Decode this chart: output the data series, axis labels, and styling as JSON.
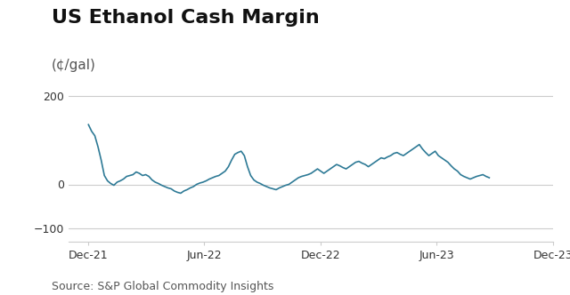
{
  "title": "US Ethanol Cash Margin",
  "subtitle": "(¢/gal)",
  "source": "Source: S&P Global Commodity Insights",
  "line_color": "#2e7a96",
  "background_color": "#ffffff",
  "yticks": [
    -100,
    0,
    200
  ],
  "ylim": [
    -130,
    230
  ],
  "title_fontsize": 16,
  "subtitle_fontsize": 11,
  "source_fontsize": 9,
  "axis_label_color": "#333333",
  "grid_color": "#cccccc",
  "series": [
    [
      0,
      135
    ],
    [
      5,
      120
    ],
    [
      10,
      110
    ],
    [
      15,
      85
    ],
    [
      20,
      55
    ],
    [
      25,
      20
    ],
    [
      30,
      8
    ],
    [
      35,
      2
    ],
    [
      40,
      -2
    ],
    [
      45,
      5
    ],
    [
      50,
      8
    ],
    [
      55,
      12
    ],
    [
      60,
      18
    ],
    [
      65,
      20
    ],
    [
      70,
      22
    ],
    [
      75,
      28
    ],
    [
      80,
      25
    ],
    [
      85,
      20
    ],
    [
      90,
      22
    ],
    [
      95,
      18
    ],
    [
      100,
      10
    ],
    [
      105,
      5
    ],
    [
      110,
      2
    ],
    [
      115,
      -2
    ],
    [
      120,
      -5
    ],
    [
      125,
      -8
    ],
    [
      130,
      -10
    ],
    [
      135,
      -15
    ],
    [
      140,
      -18
    ],
    [
      145,
      -20
    ],
    [
      150,
      -15
    ],
    [
      155,
      -12
    ],
    [
      160,
      -8
    ],
    [
      165,
      -5
    ],
    [
      170,
      0
    ],
    [
      175,
      3
    ],
    [
      180,
      5
    ],
    [
      185,
      8
    ],
    [
      190,
      12
    ],
    [
      195,
      15
    ],
    [
      200,
      18
    ],
    [
      205,
      20
    ],
    [
      210,
      25
    ],
    [
      215,
      30
    ],
    [
      220,
      40
    ],
    [
      225,
      55
    ],
    [
      230,
      68
    ],
    [
      235,
      72
    ],
    [
      240,
      75
    ],
    [
      245,
      65
    ],
    [
      250,
      40
    ],
    [
      255,
      20
    ],
    [
      260,
      10
    ],
    [
      265,
      5
    ],
    [
      270,
      2
    ],
    [
      275,
      -2
    ],
    [
      280,
      -5
    ],
    [
      285,
      -8
    ],
    [
      290,
      -10
    ],
    [
      295,
      -12
    ],
    [
      300,
      -8
    ],
    [
      305,
      -5
    ],
    [
      310,
      -2
    ],
    [
      315,
      0
    ],
    [
      320,
      5
    ],
    [
      325,
      10
    ],
    [
      330,
      15
    ],
    [
      335,
      18
    ],
    [
      340,
      20
    ],
    [
      345,
      22
    ],
    [
      350,
      25
    ],
    [
      355,
      30
    ],
    [
      360,
      35
    ],
    [
      365,
      30
    ],
    [
      370,
      25
    ],
    [
      375,
      30
    ],
    [
      380,
      35
    ],
    [
      385,
      40
    ],
    [
      390,
      45
    ],
    [
      395,
      42
    ],
    [
      400,
      38
    ],
    [
      405,
      35
    ],
    [
      410,
      40
    ],
    [
      415,
      45
    ],
    [
      420,
      50
    ],
    [
      425,
      52
    ],
    [
      430,
      48
    ],
    [
      435,
      45
    ],
    [
      440,
      40
    ],
    [
      445,
      45
    ],
    [
      450,
      50
    ],
    [
      455,
      55
    ],
    [
      460,
      60
    ],
    [
      465,
      58
    ],
    [
      470,
      62
    ],
    [
      475,
      65
    ],
    [
      480,
      70
    ],
    [
      485,
      72
    ],
    [
      490,
      68
    ],
    [
      495,
      65
    ],
    [
      500,
      70
    ],
    [
      505,
      75
    ],
    [
      510,
      80
    ],
    [
      515,
      85
    ],
    [
      520,
      90
    ],
    [
      525,
      80
    ],
    [
      530,
      72
    ],
    [
      535,
      65
    ],
    [
      540,
      70
    ],
    [
      545,
      75
    ],
    [
      550,
      65
    ],
    [
      555,
      60
    ],
    [
      560,
      55
    ],
    [
      565,
      50
    ],
    [
      570,
      42
    ],
    [
      575,
      35
    ],
    [
      580,
      30
    ],
    [
      585,
      22
    ],
    [
      590,
      18
    ],
    [
      595,
      15
    ],
    [
      600,
      12
    ],
    [
      605,
      15
    ],
    [
      610,
      18
    ],
    [
      615,
      20
    ],
    [
      620,
      22
    ],
    [
      625,
      18
    ],
    [
      630,
      15
    ]
  ]
}
